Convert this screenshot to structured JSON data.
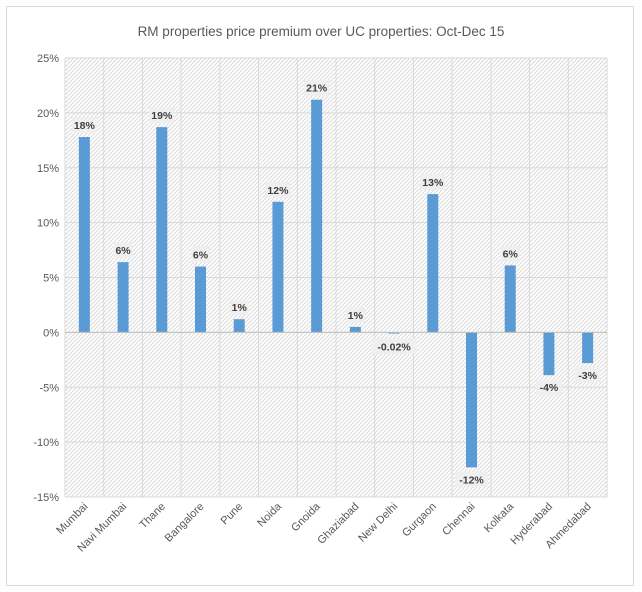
{
  "chart_data": {
    "type": "bar",
    "title": "RM properties price premium over UC properties: Oct-Dec 15",
    "xlabel": "",
    "ylabel": "",
    "ylim": [
      -0.15,
      0.25
    ],
    "yticks": [
      0.25,
      0.2,
      0.15,
      0.1,
      0.05,
      0,
      -0.05,
      -0.1,
      -0.15
    ],
    "ytick_labels": [
      "25%",
      "20%",
      "15%",
      "10%",
      "5%",
      "0%",
      "-5%",
      "-10%",
      "-15%"
    ],
    "grid": true,
    "legend": "none",
    "bar_color": "#5b9bd5",
    "categories": [
      "Mumbai",
      "Navi Mumbai",
      "Thane",
      "Bangalore",
      "Pune",
      "Noida",
      "Gnoida",
      "Ghaziabad",
      "New Delhi",
      "Gurgaon",
      "Chennai",
      "Kolkata",
      "Hyderabad",
      "Ahmedabad"
    ],
    "values": [
      0.178,
      0.064,
      0.187,
      0.06,
      0.012,
      0.119,
      0.212,
      0.005,
      -0.0002,
      0.126,
      -0.123,
      0.061,
      -0.039,
      -0.028
    ],
    "data_labels": [
      "18%",
      "6%",
      "19%",
      "6%",
      "1%",
      "12%",
      "21%",
      "1%",
      "-0.02%",
      "13%",
      "-12%",
      "6%",
      "-4%",
      "-3%"
    ]
  }
}
